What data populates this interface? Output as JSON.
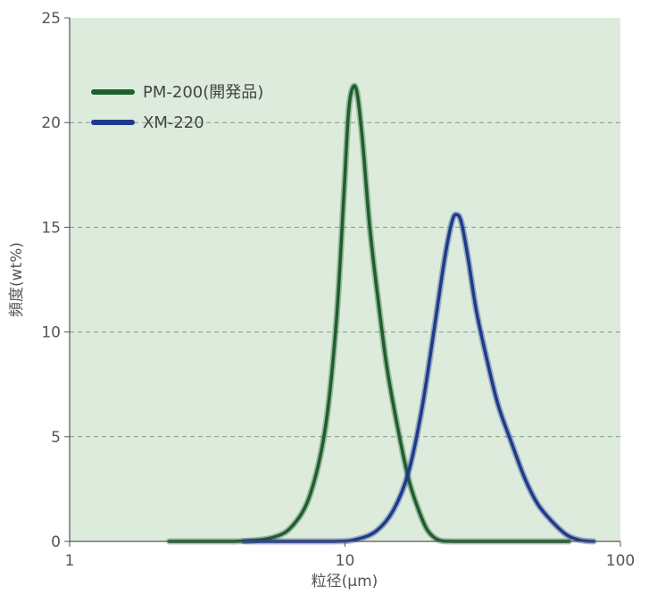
{
  "chart_data": {
    "type": "line",
    "x_scale": "log",
    "xlabel": "粒径(μm)",
    "ylabel": "頻度(wt%)",
    "xlim": [
      1,
      100
    ],
    "ylim": [
      0,
      25
    ],
    "x_ticks": [
      "1",
      "10",
      "100"
    ],
    "y_ticks": [
      "0",
      "5",
      "10",
      "15",
      "20",
      "25"
    ],
    "grid": "horizontal dashed",
    "legend_position": "top-left",
    "background_color": "#dcebdc",
    "series": [
      {
        "name": "PM-200(開発品)",
        "color": "#1f5e2e",
        "points": [
          [
            2.3,
            0
          ],
          [
            4.0,
            0
          ],
          [
            5.5,
            0.2
          ],
          [
            6.5,
            0.8
          ],
          [
            7.5,
            2.3
          ],
          [
            8.5,
            5.5
          ],
          [
            9.3,
            10.5
          ],
          [
            9.9,
            16.5
          ],
          [
            10.3,
            20.5
          ],
          [
            10.7,
            21.7
          ],
          [
            11.1,
            21.3
          ],
          [
            11.6,
            19.0
          ],
          [
            12.3,
            15.0
          ],
          [
            13.2,
            11.5
          ],
          [
            14.2,
            8.3
          ],
          [
            15.5,
            5.5
          ],
          [
            17.0,
            3.0
          ],
          [
            18.5,
            1.5
          ],
          [
            20.0,
            0.5
          ],
          [
            22.0,
            0.05
          ],
          [
            25,
            0
          ],
          [
            40,
            0
          ],
          [
            65,
            0
          ]
        ]
      },
      {
        "name": "XM-220",
        "color": "#1f3a8c",
        "points": [
          [
            4.3,
            0
          ],
          [
            9,
            0
          ],
          [
            11,
            0.1
          ],
          [
            13,
            0.5
          ],
          [
            15,
            1.5
          ],
          [
            17,
            3.3
          ],
          [
            19,
            6.3
          ],
          [
            21,
            10.0
          ],
          [
            23,
            13.5
          ],
          [
            24.5,
            15.3
          ],
          [
            25.5,
            15.6
          ],
          [
            26.5,
            15.2
          ],
          [
            28,
            13.5
          ],
          [
            30,
            11.0
          ],
          [
            33,
            8.5
          ],
          [
            36,
            6.5
          ],
          [
            40,
            4.8
          ],
          [
            45,
            3.0
          ],
          [
            50,
            1.8
          ],
          [
            56,
            1.0
          ],
          [
            64,
            0.3
          ],
          [
            72,
            0.05
          ],
          [
            80,
            0
          ]
        ]
      }
    ]
  }
}
